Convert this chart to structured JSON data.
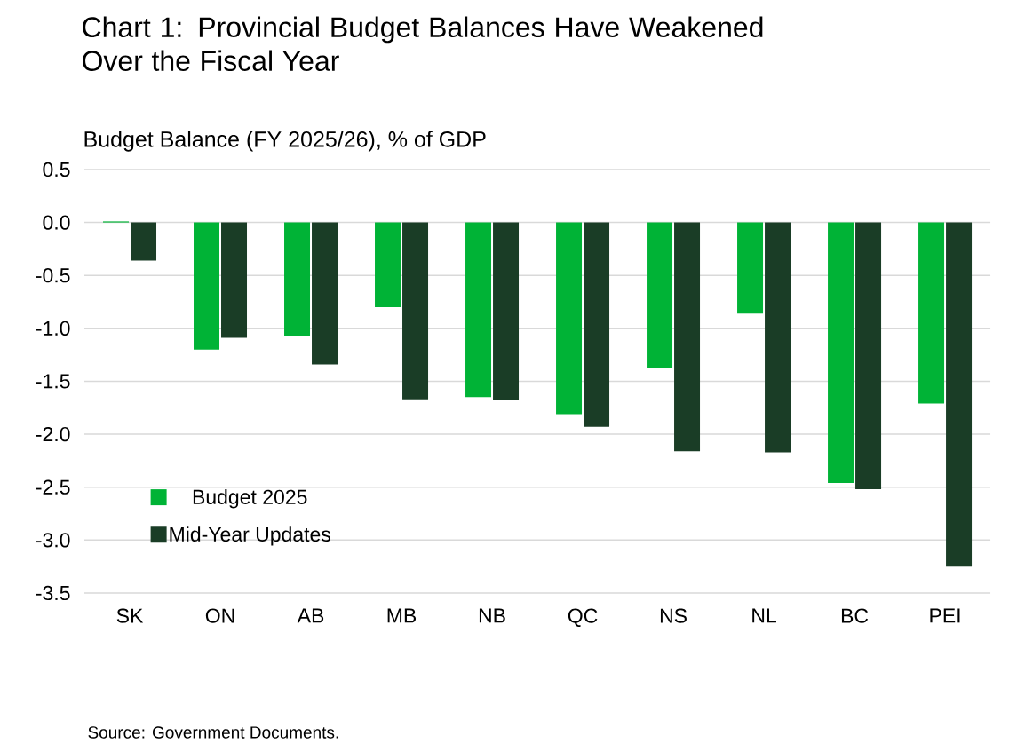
{
  "chart_data": {
    "type": "bar",
    "title": "Chart 1: Provincial Budget Balances Have Weakened Over the Fiscal Year",
    "ylabel": "Budget Balance (FY 2025/26), % of GDP",
    "categories": [
      "SK",
      "ON",
      "AB",
      "MB",
      "NB",
      "QC",
      "NS",
      "NL",
      "BC",
      "PEI"
    ],
    "series": [
      {
        "name": "Budget 2025",
        "color": "#00b336",
        "values": [
          0.01,
          -1.2,
          -1.07,
          -0.8,
          -1.65,
          -1.81,
          -1.37,
          -0.86,
          -2.46,
          -1.71
        ]
      },
      {
        "name": "Mid-Year Updates",
        "color": "#1a3d26",
        "values": [
          -0.36,
          -1.09,
          -1.34,
          -1.67,
          -1.68,
          -1.93,
          -2.16,
          -2.17,
          -2.52,
          -3.25
        ]
      }
    ],
    "ylim": [
      -3.5,
      0.5
    ],
    "yticks": [
      0.5,
      {
        "value": 0,
        "label": "0.0"
      },
      -0.5,
      {
        "value": -1,
        "label": "-1.0"
      },
      -1.5,
      {
        "value": -2,
        "label": "-2.0"
      },
      -2.5,
      {
        "value": -3,
        "label": "-3.0"
      },
      -3.5
    ],
    "grid": "y",
    "legend": "bottom left",
    "annotations": [
      "Source: Government Documents."
    ]
  }
}
